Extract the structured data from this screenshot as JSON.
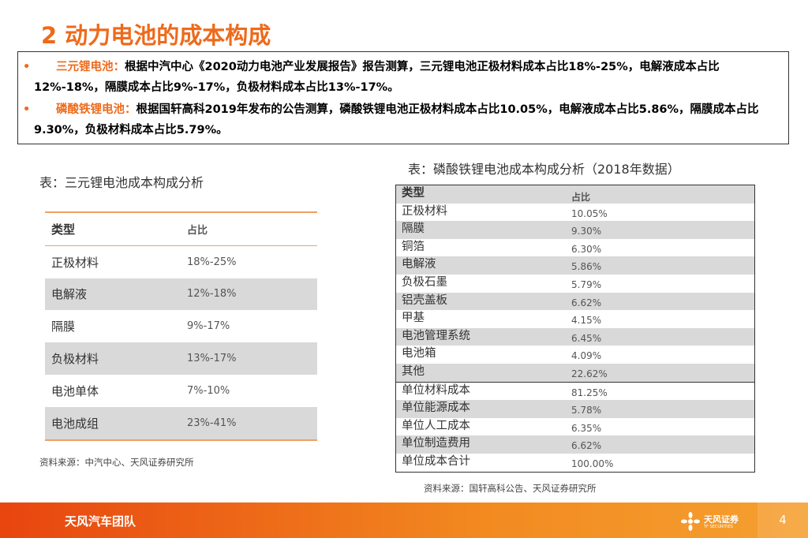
{
  "title": "2 动力电池的成本构成",
  "bullets": [
    {
      "label": "三元锂电池：",
      "text": "根据中汽中心《2020动力电池产业发展报告》报告测算，三元锂电池正极材料成本占比18%-25%，电解液成本占比12%-18%，隔膜成本占比9%-17%，负极材料成本占比13%-17%。"
    },
    {
      "label": "磷酸铁锂电池：",
      "text": "根据国轩高科2019年发布的公告测算，磷酸铁锂电池正极材料成本占比10.05%，电解液成本占比5.86%，隔膜成本占比9.30%，负极材料成本占比5.79%。"
    }
  ],
  "table1": {
    "caption": "表：三元锂电池成本构成分析",
    "header": [
      "类型",
      "占比"
    ],
    "rows": [
      [
        "正极材料",
        "18%-25%"
      ],
      [
        "电解液",
        "12%-18%"
      ],
      [
        "隔膜",
        "9%-17%"
      ],
      [
        "负极材料",
        "13%-17%"
      ],
      [
        "电池单体",
        "7%-10%"
      ],
      [
        "电池成组",
        "23%-41%"
      ]
    ],
    "source": "资料来源：中汽中心、天风证券研究所"
  },
  "table2": {
    "caption": "表：磷酸铁锂电池成本构成分析（2018年数据）",
    "header": [
      "类型",
      "占比"
    ],
    "rows": [
      [
        "正极材料",
        "10.05%"
      ],
      [
        "隔膜",
        "9.30%"
      ],
      [
        "铜箔",
        "6.30%"
      ],
      [
        "电解液",
        "5.86%"
      ],
      [
        "负极石墨",
        "5.79%"
      ],
      [
        "铝壳盖板",
        "6.62%"
      ],
      [
        "甲基",
        "4.15%"
      ],
      [
        "电池管理系统",
        "6.45%"
      ],
      [
        "电池箱",
        "4.09%"
      ],
      [
        "其他",
        "22.62%"
      ],
      [
        "单位材料成本",
        "81.25%"
      ],
      [
        "单位能源成本",
        "5.78%"
      ],
      [
        "单位人工成本",
        "6.35%"
      ],
      [
        "单位制造费用",
        "6.62%"
      ],
      [
        "单位成本合计",
        "100.00%"
      ]
    ],
    "source": "资料来源：国轩高科公告、天风证券研究所"
  },
  "footer": {
    "team": "天风汽车团队",
    "logo": "天风证券",
    "logo_sub": "TF SECURITIES",
    "page": "4"
  }
}
